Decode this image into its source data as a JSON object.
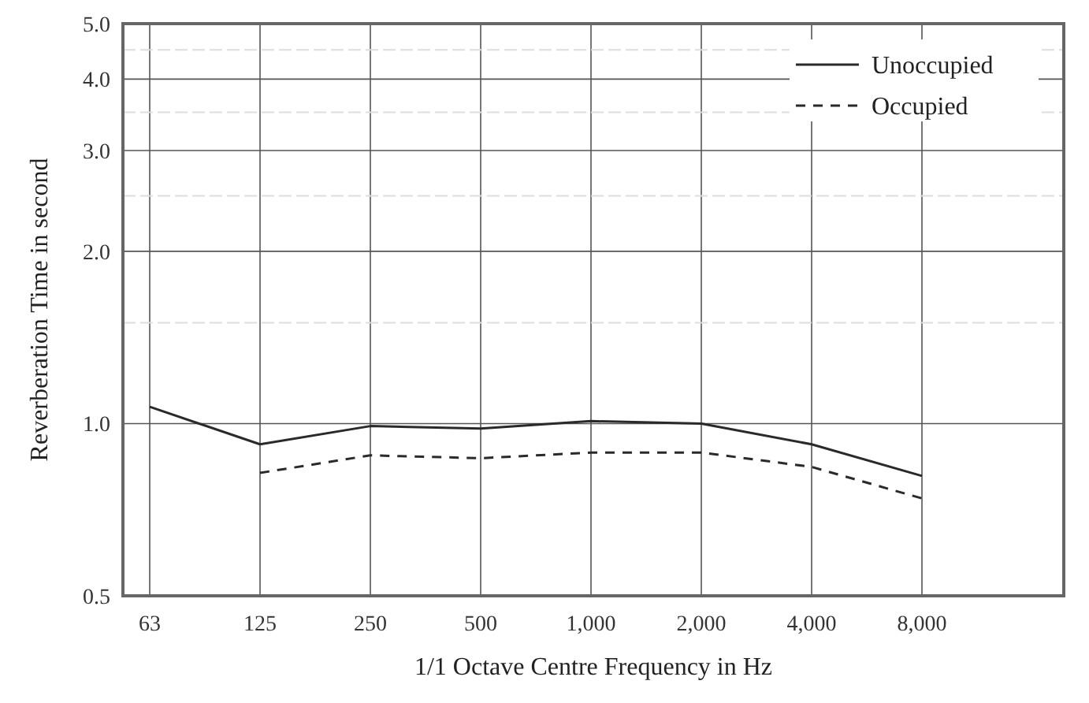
{
  "chart_data": {
    "type": "line",
    "xlabel": "1/1 Octave Centre Frequency in Hz",
    "ylabel": "Reverberation Time in second",
    "categories": [
      "63",
      "125",
      "250",
      "500",
      "1,000",
      "2,000",
      "4,000",
      "8,000"
    ],
    "series": [
      {
        "name": "Unoccupied",
        "color": "#2a2a2a",
        "line_style": "solid",
        "values": [
          1.07,
          0.92,
          0.99,
          0.98,
          1.01,
          1.0,
          0.92,
          0.81
        ]
      },
      {
        "name": "Occupied",
        "color": "#2a2a2a",
        "line_style": "dashed",
        "values": [
          null,
          0.82,
          0.88,
          0.87,
          0.89,
          0.89,
          0.84,
          0.74
        ]
      }
    ],
    "log": true,
    "ylim": [
      0.5,
      5.0
    ],
    "yticks": [
      {
        "value": 0.5,
        "label": "0.5"
      },
      {
        "value": 1.0,
        "label": "1.0"
      },
      {
        "value": 1.5,
        "label": null
      },
      {
        "value": 2.0,
        "label": "2.0"
      },
      {
        "value": 2.5,
        "label": null
      },
      {
        "value": 3.0,
        "label": "3.0"
      },
      {
        "value": 3.5,
        "label": null
      },
      {
        "value": 4.0,
        "label": "4.0"
      },
      {
        "value": 4.5,
        "label": null
      },
      {
        "value": 5.0,
        "label": "5.0"
      }
    ],
    "grid": true,
    "legend": "top right"
  }
}
